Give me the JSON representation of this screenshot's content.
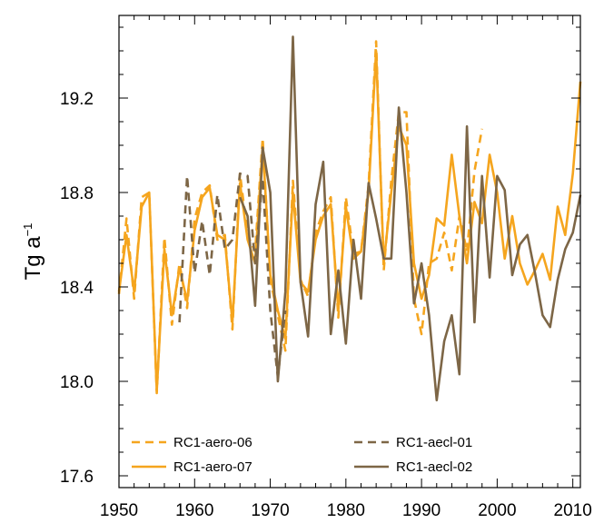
{
  "chart_data": {
    "type": "line",
    "title": "",
    "xlabel": "",
    "ylabel": "Tg a",
    "ylabel_superscript": "−1",
    "xlim": [
      1950,
      2011
    ],
    "ylim": [
      17.55,
      19.55
    ],
    "x_ticks": [
      1950,
      1960,
      1970,
      1980,
      1990,
      2000,
      2010
    ],
    "x_tick_labels": [
      "1950",
      "1960",
      "1970",
      "1980",
      "1990",
      "2000",
      "2010"
    ],
    "y_ticks": [
      17.6,
      18.0,
      18.4,
      18.8,
      19.2
    ],
    "y_tick_labels": [
      "17.6",
      "18.0",
      "18.4",
      "18.8",
      "19.2"
    ],
    "grid": false,
    "legend_position": "bottom",
    "series": [
      {
        "name": "RC1-aero-06",
        "color": "#f5a51e",
        "dash": "dashed",
        "x": [
          1950,
          1951,
          1952,
          1953,
          1954,
          1955,
          1956,
          1957,
          1958,
          1959,
          1960,
          1961,
          1962,
          1963,
          1964,
          1965,
          1966,
          1967,
          1968,
          1969,
          1970,
          1971,
          1972,
          1973,
          1974,
          1975,
          1976,
          1977,
          1978,
          1979,
          1980,
          1981,
          1982,
          1983,
          1984,
          1985,
          1986,
          1987,
          1988,
          1989,
          1990,
          1991,
          1992,
          1993,
          1994,
          1995,
          1996,
          1997,
          1998
        ],
        "values": [
          18.37,
          18.69,
          18.35,
          18.78,
          18.8,
          17.95,
          18.61,
          18.24,
          18.5,
          18.31,
          18.69,
          18.8,
          18.83,
          18.6,
          18.62,
          18.22,
          18.88,
          18.62,
          18.55,
          19.03,
          18.43,
          18.28,
          18.13,
          18.85,
          18.43,
          18.36,
          18.63,
          18.72,
          18.78,
          18.27,
          18.78,
          18.54,
          18.55,
          18.83,
          19.44,
          18.47,
          18.85,
          19.14,
          19.14,
          18.35,
          18.2,
          18.5,
          18.52,
          18.63,
          18.47,
          18.7,
          18.55,
          18.89,
          19.07
        ]
      },
      {
        "name": "RC1-aero-07",
        "color": "#f5a51e",
        "dash": "solid",
        "x": [
          1950,
          1951,
          1952,
          1953,
          1954,
          1955,
          1956,
          1957,
          1958,
          1959,
          1960,
          1961,
          1962,
          1963,
          1964,
          1965,
          1966,
          1967,
          1968,
          1969,
          1970,
          1971,
          1972,
          1973,
          1974,
          1975,
          1976,
          1977,
          1978,
          1979,
          1980,
          1981,
          1982,
          1983,
          1984,
          1985,
          1986,
          1987,
          1988,
          1989,
          1990,
          1991,
          1992,
          1993,
          1994,
          1995,
          1996,
          1997,
          1998,
          1999,
          2000,
          2001,
          2002,
          2003,
          2004,
          2005,
          2006,
          2007,
          2008,
          2009,
          2010,
          2011
        ],
        "values": [
          18.38,
          18.62,
          18.38,
          18.74,
          18.8,
          17.96,
          18.56,
          18.28,
          18.48,
          18.34,
          18.64,
          18.78,
          18.82,
          18.62,
          18.6,
          18.25,
          18.84,
          18.6,
          18.5,
          19.0,
          18.45,
          18.3,
          18.18,
          18.8,
          18.42,
          18.38,
          18.6,
          18.7,
          18.75,
          18.3,
          18.74,
          18.52,
          18.55,
          18.8,
          19.4,
          18.5,
          18.8,
          19.08,
          19.0,
          18.5,
          18.35,
          18.45,
          18.69,
          18.66,
          18.96,
          18.7,
          18.5,
          18.76,
          18.67,
          18.96,
          18.8,
          18.52,
          18.7,
          18.5,
          18.41,
          18.47,
          18.54,
          18.43,
          18.74,
          18.62,
          18.88,
          19.27
        ]
      },
      {
        "name": "RC1-aecl-01",
        "color": "#7d6646",
        "dash": "dashed",
        "x": [
          1958,
          1959,
          1960,
          1961,
          1962,
          1963,
          1964,
          1965,
          1966,
          1967,
          1968,
          1969,
          1970,
          1971,
          1972
        ],
        "values": [
          18.25,
          18.87,
          18.46,
          18.68,
          18.45,
          18.79,
          18.56,
          18.6,
          18.88,
          18.87,
          18.5,
          18.86,
          18.3,
          18.02,
          18.3
        ]
      },
      {
        "name": "RC1-aecl-02",
        "color": "#7d6646",
        "dash": "solid",
        "x": [
          1966,
          1967,
          1968,
          1969,
          1970,
          1971,
          1972,
          1973,
          1974,
          1975,
          1976,
          1977,
          1978,
          1979,
          1980,
          1981,
          1982,
          1983,
          1984,
          1985,
          1986,
          1987,
          1988,
          1989,
          1990,
          1991,
          1992,
          1993,
          1994,
          1995,
          1996,
          1997,
          1998,
          1999,
          2000,
          2001,
          2002,
          2003,
          2004,
          2005,
          2006,
          2007,
          2008,
          2009,
          2010,
          2011
        ],
        "values": [
          18.78,
          18.7,
          18.32,
          18.99,
          18.8,
          18.0,
          18.38,
          19.46,
          18.42,
          18.19,
          18.75,
          18.93,
          18.2,
          18.47,
          18.16,
          18.6,
          18.35,
          18.84,
          18.69,
          18.52,
          18.52,
          19.16,
          18.8,
          18.33,
          18.5,
          18.28,
          17.92,
          18.17,
          18.28,
          18.03,
          19.08,
          18.25,
          18.87,
          18.44,
          18.87,
          18.81,
          18.45,
          18.58,
          18.62,
          18.46,
          18.28,
          18.23,
          18.43,
          18.56,
          18.63,
          18.79
        ]
      }
    ]
  }
}
